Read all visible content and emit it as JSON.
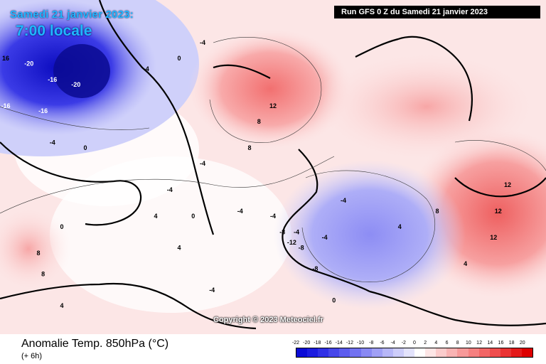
{
  "header": {
    "date_line": "Samedi 21 janvier 2023:",
    "time_line": "7:00 locale",
    "run": "Run GFS 0 Z du Samedi 21 janvier 2023"
  },
  "footer": {
    "variable": "Anomalie Temp. 850hPa (°C)",
    "lead": "(+ 6h)",
    "copyright": "Copyright © 2023 Meteociel.fr"
  },
  "colorbar": {
    "ticks": [
      "-22",
      "-20",
      "-18",
      "-16",
      "-14",
      "-12",
      "-10",
      "-8",
      "-6",
      "-4",
      "-2",
      "0",
      "2",
      "4",
      "6",
      "8",
      "10",
      "12",
      "14",
      "16",
      "18",
      "20"
    ],
    "colors": [
      "#0b0bd6",
      "#1c1ce0",
      "#3030e6",
      "#4646ea",
      "#5c5cee",
      "#7272f1",
      "#8989f4",
      "#a0a0f6",
      "#b7b7f8",
      "#cdcdfa",
      "#e3e3fc",
      "#ffffff",
      "#fde6e6",
      "#fbcccc",
      "#f9b3b3",
      "#f79999",
      "#f58080",
      "#f26666",
      "#ef4d4d",
      "#ea3333",
      "#e41a1a",
      "#dd0000"
    ]
  },
  "map_labels": [
    {
      "text": "16",
      "lon": -58,
      "lat": 72
    },
    {
      "text": "-20",
      "lon": -47,
      "lat": 71
    },
    {
      "text": "-16",
      "lon": -42,
      "lat": 68
    },
    {
      "text": "-20",
      "lon": -37,
      "lat": 67
    },
    {
      "text": "-16",
      "lon": -44,
      "lat": 62
    },
    {
      "text": "-16",
      "lon": -52,
      "lat": 63
    },
    {
      "text": "-4",
      "lon": -42,
      "lat": 56
    },
    {
      "text": "0",
      "lon": -35,
      "lat": 55
    },
    {
      "text": "-4",
      "lon": -22,
      "lat": 70
    },
    {
      "text": "0",
      "lon": -15,
      "lat": 72
    },
    {
      "text": "-4",
      "lon": -10,
      "lat": 75
    },
    {
      "text": "12",
      "lon": 5,
      "lat": 63
    },
    {
      "text": "8",
      "lon": 2,
      "lat": 60
    },
    {
      "text": "8",
      "lon": 0,
      "lat": 55
    },
    {
      "text": "-4",
      "lon": -10,
      "lat": 52
    },
    {
      "text": "-4",
      "lon": -17,
      "lat": 47
    },
    {
      "text": "4",
      "lon": -20,
      "lat": 42
    },
    {
      "text": "0",
      "lon": -40,
      "lat": 40
    },
    {
      "text": "0",
      "lon": -12,
      "lat": 42
    },
    {
      "text": "8",
      "lon": -45,
      "lat": 35
    },
    {
      "text": "8",
      "lon": -44,
      "lat": 31
    },
    {
      "text": "4",
      "lon": -15,
      "lat": 36
    },
    {
      "text": "-4",
      "lon": -2,
      "lat": 43
    },
    {
      "text": "-4",
      "lon": 5,
      "lat": 42
    },
    {
      "text": "-8",
      "lon": 7,
      "lat": 39
    },
    {
      "text": "-12",
      "lon": 9,
      "lat": 37
    },
    {
      "text": "-8",
      "lon": 11,
      "lat": 36
    },
    {
      "text": "-4",
      "lon": 10,
      "lat": 39
    },
    {
      "text": "-8",
      "lon": 14,
      "lat": 32
    },
    {
      "text": "-4",
      "lon": 20,
      "lat": 45
    },
    {
      "text": "-4",
      "lon": 16,
      "lat": 38
    },
    {
      "text": "4",
      "lon": 32,
      "lat": 40
    },
    {
      "text": "8",
      "lon": 40,
      "lat": 43
    },
    {
      "text": "12",
      "lon": 55,
      "lat": 48
    },
    {
      "text": "12",
      "lon": 53,
      "lat": 43
    },
    {
      "text": "12",
      "lon": 52,
      "lat": 38
    },
    {
      "text": "4",
      "lon": 46,
      "lat": 33
    },
    {
      "text": "0",
      "lon": 18,
      "lat": 26
    },
    {
      "text": "-4",
      "lon": -8,
      "lat": 28
    },
    {
      "text": "4",
      "lon": -40,
      "lat": 25
    }
  ]
}
